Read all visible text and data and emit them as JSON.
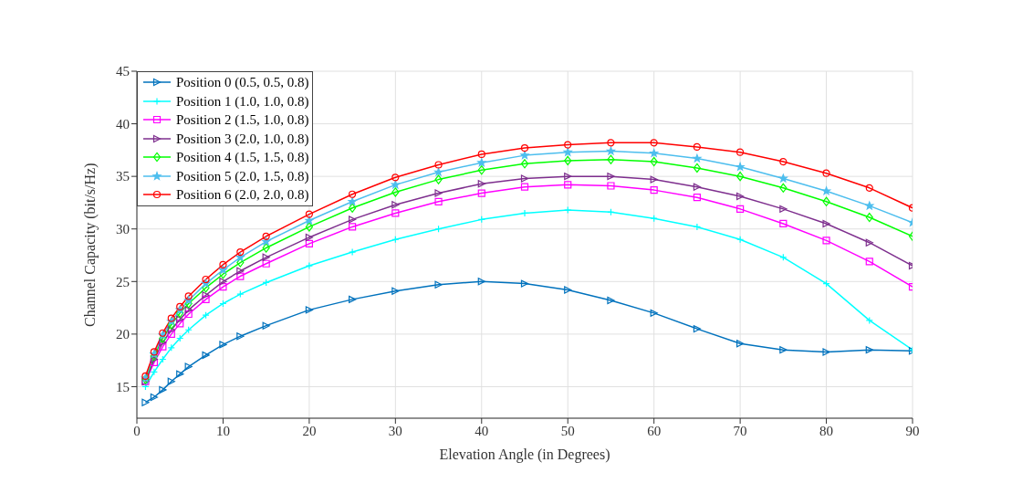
{
  "chart_data": {
    "type": "line",
    "xlabel": "Elevation Angle (in Degrees)",
    "ylabel": "Channel Capacity (bit/s/Hz)",
    "x": [
      1,
      2,
      3,
      4,
      5,
      6,
      8,
      10,
      12,
      15,
      20,
      25,
      30,
      35,
      40,
      45,
      50,
      55,
      60,
      65,
      70,
      75,
      80,
      85,
      90
    ],
    "series": [
      {
        "name": "Position 0 (0.5, 0.5, 0.8)",
        "color": "#0072bd",
        "marker": "triangle",
        "values": [
          13.5,
          14.0,
          14.7,
          15.5,
          16.2,
          16.9,
          18.0,
          19.0,
          19.8,
          20.8,
          22.3,
          23.3,
          24.1,
          24.7,
          25.0,
          24.8,
          24.2,
          23.2,
          22.0,
          20.5,
          19.1,
          18.5,
          18.3,
          18.5,
          18.4
        ]
      },
      {
        "name": "Position 1 (1.0, 1.0, 0.8)",
        "color": "#00ffff",
        "marker": "cross",
        "values": [
          15.0,
          16.4,
          17.6,
          18.7,
          19.6,
          20.4,
          21.8,
          22.9,
          23.8,
          24.9,
          26.5,
          27.8,
          29.0,
          30.0,
          30.9,
          31.5,
          31.8,
          31.6,
          31.0,
          30.2,
          29.0,
          27.3,
          24.8,
          21.3,
          18.5
        ]
      },
      {
        "name": "Position 2 (1.5, 1.0, 0.8)",
        "color": "#ff00ff",
        "marker": "square",
        "values": [
          15.5,
          17.3,
          18.8,
          20.0,
          21.0,
          21.9,
          23.3,
          24.5,
          25.5,
          26.7,
          28.6,
          30.2,
          31.5,
          32.6,
          33.4,
          34.0,
          34.2,
          34.1,
          33.7,
          33.0,
          31.9,
          30.5,
          28.9,
          26.9,
          24.5
        ]
      },
      {
        "name": "Position 3 (2.0, 1.0, 0.8)",
        "color": "#7e2f8e",
        "marker": "triangle",
        "values": [
          15.5,
          17.6,
          19.2,
          20.4,
          21.4,
          22.3,
          23.7,
          25.0,
          26.0,
          27.3,
          29.2,
          30.9,
          32.3,
          33.4,
          34.3,
          34.8,
          35.0,
          35.0,
          34.7,
          34.0,
          33.1,
          31.9,
          30.5,
          28.7,
          26.5
        ]
      },
      {
        "name": "Position 4 (1.5, 1.5, 0.8)",
        "color": "#00ff00",
        "marker": "diamond",
        "values": [
          15.7,
          17.9,
          19.6,
          20.9,
          22.0,
          22.9,
          24.4,
          25.7,
          26.8,
          28.2,
          30.2,
          32.0,
          33.5,
          34.7,
          35.6,
          36.2,
          36.5,
          36.6,
          36.4,
          35.8,
          35.0,
          33.9,
          32.6,
          31.1,
          29.3
        ]
      },
      {
        "name": "Position 5 (2.0, 1.5, 0.8)",
        "color": "#4dbeee",
        "marker": "star",
        "values": [
          15.8,
          18.1,
          19.9,
          21.2,
          22.3,
          23.2,
          24.8,
          26.1,
          27.3,
          28.8,
          30.8,
          32.6,
          34.2,
          35.4,
          36.3,
          37.0,
          37.3,
          37.4,
          37.2,
          36.7,
          35.9,
          34.8,
          33.6,
          32.2,
          30.6
        ]
      },
      {
        "name": "Position 6 (2.0, 2.0, 0.8)",
        "color": "#ff0000",
        "marker": "circle",
        "values": [
          16.0,
          18.3,
          20.1,
          21.5,
          22.6,
          23.6,
          25.2,
          26.6,
          27.8,
          29.3,
          31.4,
          33.3,
          34.9,
          36.1,
          37.1,
          37.7,
          38.0,
          38.2,
          38.2,
          37.8,
          37.3,
          36.4,
          35.3,
          33.9,
          32.0
        ]
      }
    ],
    "xlim": [
      0,
      90
    ],
    "xticks": [
      0,
      10,
      20,
      30,
      40,
      50,
      60,
      70,
      80,
      90
    ],
    "ylim": [
      12,
      45
    ],
    "yticks": [
      15,
      20,
      25,
      30,
      35,
      40,
      45
    ],
    "grid": true,
    "legend": "top left",
    "line_style": "solid"
  }
}
